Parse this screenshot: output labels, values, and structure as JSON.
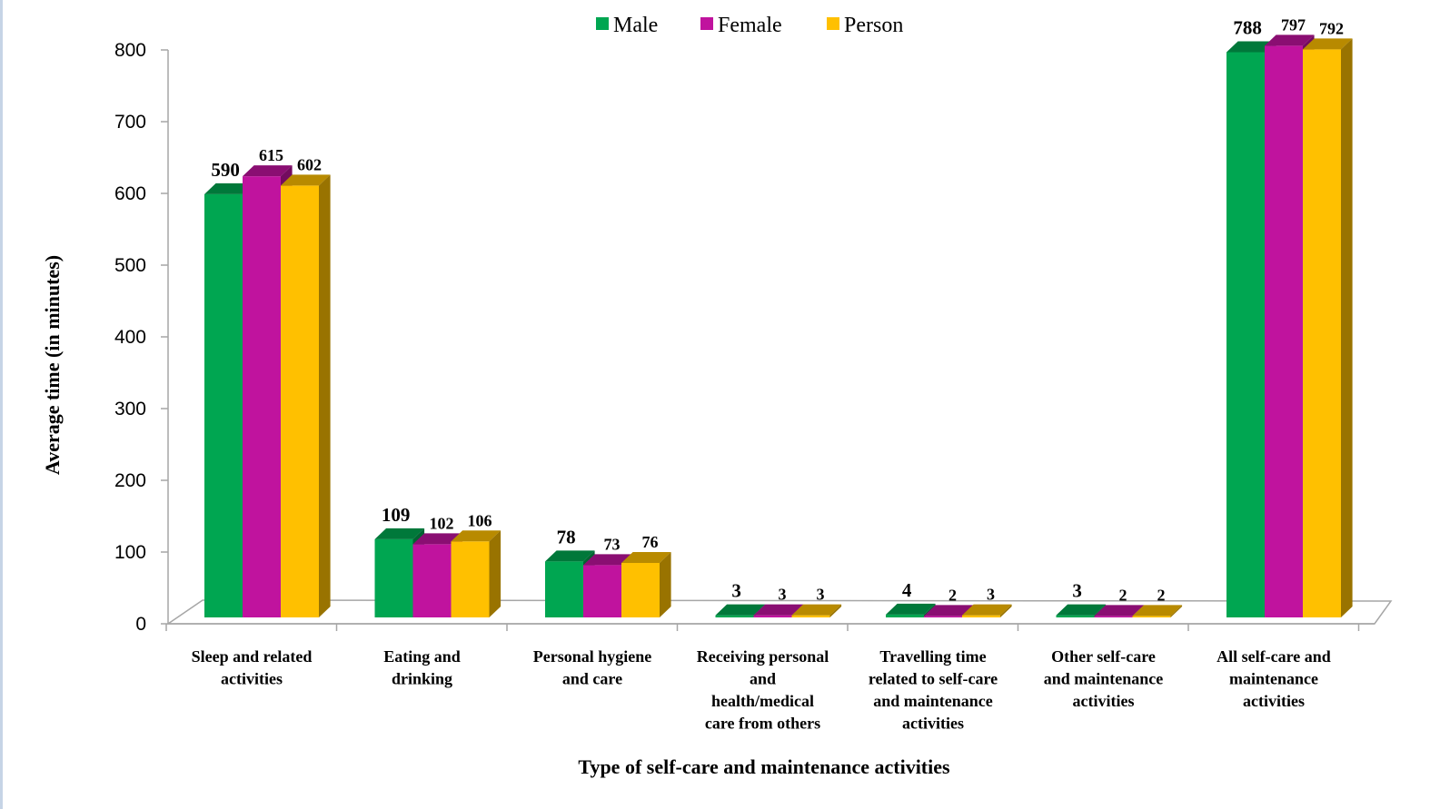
{
  "chart_data": {
    "type": "bar",
    "title": "",
    "xlabel": "Type of self-care and maintenance activities",
    "ylabel": "Average time (in minutes)",
    "ylim": [
      0,
      800
    ],
    "yticks": [
      0,
      100,
      200,
      300,
      400,
      500,
      600,
      700,
      800
    ],
    "legend_position": "top",
    "categories": [
      "Sleep and related activities",
      "Eating and drinking",
      "Personal hygiene and care",
      "Receiving personal and health/medical care from others",
      "Travelling time related to self-care and maintenance activities",
      "Other self-care and maintenance activities",
      "All self-care and maintenance activities"
    ],
    "category_lines": [
      [
        "Sleep and related",
        "activities"
      ],
      [
        "Eating and",
        "drinking"
      ],
      [
        "Personal hygiene",
        "and care"
      ],
      [
        "Receiving personal",
        "and",
        "health/medical",
        "care from others"
      ],
      [
        "Travelling time",
        "related to self-care",
        "and maintenance",
        "activities"
      ],
      [
        "Other self-care",
        "and maintenance",
        "activities"
      ],
      [
        "All self-care and",
        "maintenance",
        "activities"
      ]
    ],
    "series": [
      {
        "name": "Male",
        "color": "#00a651",
        "values": [
          590,
          109,
          78,
          3,
          4,
          3,
          788
        ]
      },
      {
        "name": "Female",
        "color": "#c0139e",
        "values": [
          615,
          102,
          73,
          3,
          2,
          2,
          797
        ]
      },
      {
        "name": "Person",
        "color": "#ffc000",
        "values": [
          602,
          106,
          76,
          3,
          3,
          2,
          792
        ]
      }
    ],
    "grid": false,
    "style": "3d-clustered-column"
  }
}
